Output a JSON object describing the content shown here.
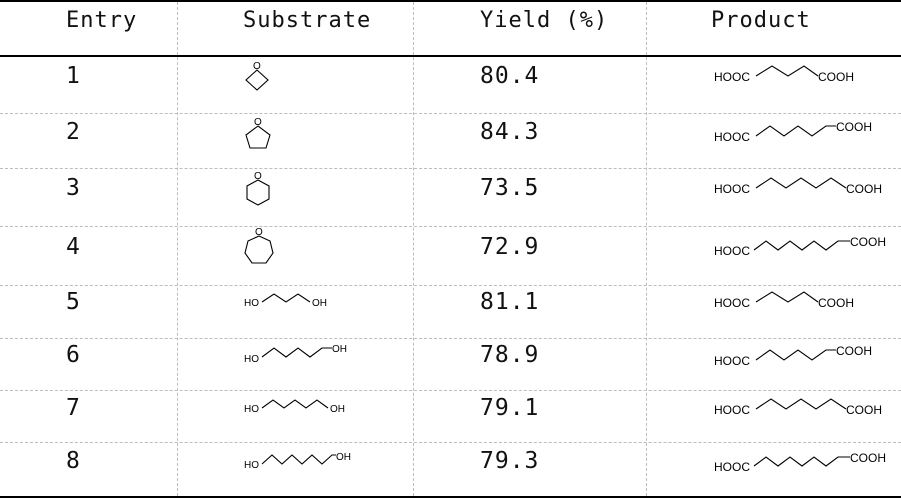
{
  "headers": {
    "entry": "Entry",
    "substrate": "Substrate",
    "yield": "Yield (%)",
    "product": "Product"
  },
  "rows": [
    {
      "entry": "1",
      "yield": "80.4"
    },
    {
      "entry": "2",
      "yield": "84.3"
    },
    {
      "entry": "3",
      "yield": "73.5"
    },
    {
      "entry": "4",
      "yield": "72.9"
    },
    {
      "entry": "5",
      "yield": "81.1"
    },
    {
      "entry": "6",
      "yield": "78.9"
    },
    {
      "entry": "7",
      "yield": "79.1"
    },
    {
      "entry": "8",
      "yield": "79.3"
    }
  ],
  "labels": {
    "o": "O",
    "oh": "OH",
    "ho": "HO",
    "hooc": "HOOC",
    "cooh": "COOH"
  }
}
